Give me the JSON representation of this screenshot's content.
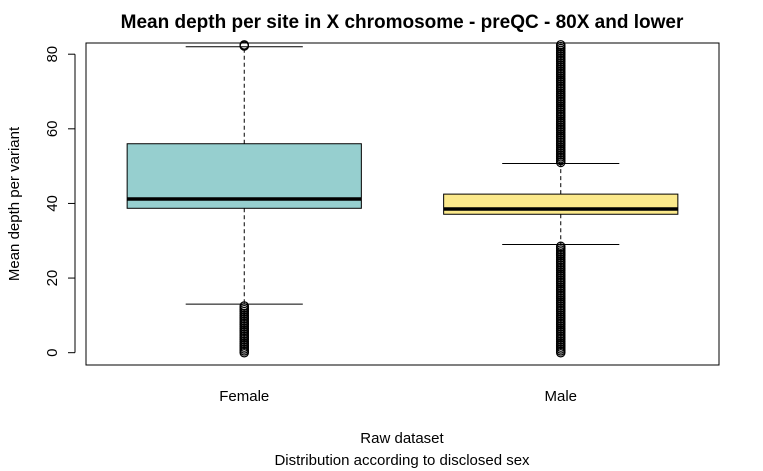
{
  "chart_data": {
    "type": "box",
    "title": "Mean depth per site in X chromosome - preQC - 80X and lower",
    "xlabel": "Raw dataset",
    "xlabel2": "Distribution according to disclosed sex",
    "ylabel": "Mean depth per variant",
    "ylim": [
      -3.3,
      83
    ],
    "yticks": [
      0,
      20,
      40,
      60,
      80
    ],
    "categories": [
      "Female",
      "Male"
    ],
    "boxes": [
      {
        "name": "Female",
        "color": "#96cfcf",
        "whisker_low": 13,
        "q1": 38.7,
        "median": 41.2,
        "q3": 56,
        "whisker_high": 82,
        "outliers_low": [
          0,
          0.5,
          1,
          1.5,
          2,
          2.5,
          3,
          3.5,
          4,
          4.5,
          5,
          5.5,
          6,
          6.5,
          7,
          7.5,
          8,
          8.5,
          9,
          9.5,
          10,
          10.5,
          11,
          11.5,
          12,
          12.5
        ],
        "outliers_high": [
          82.2,
          82.5
        ]
      },
      {
        "name": "Male",
        "color": "#fbe98c",
        "whisker_low": 29,
        "q1": 37.1,
        "median": 38.5,
        "q3": 42.5,
        "whisker_high": 50.7,
        "outliers_low": [
          0,
          0.5,
          1,
          1.5,
          2,
          2.5,
          3,
          3.5,
          4,
          4.5,
          5,
          5.5,
          6,
          6.5,
          7,
          7.5,
          8,
          8.5,
          9,
          9.5,
          10,
          10.5,
          11,
          11.5,
          12,
          12.5,
          13,
          13.5,
          14,
          14.5,
          15,
          15.5,
          16,
          16.5,
          17,
          17.5,
          18,
          18.5,
          19,
          19.5,
          20,
          20.5,
          21,
          21.5,
          22,
          22.5,
          23,
          23.5,
          24,
          24.5,
          25,
          25.5,
          26,
          26.5,
          27,
          27.5,
          28,
          28.5
        ],
        "outliers_high": [
          51,
          51.5,
          52,
          52.5,
          53,
          53.5,
          54,
          54.5,
          55,
          55.5,
          56,
          56.5,
          57,
          57.5,
          58,
          58.5,
          59,
          59.5,
          60,
          60.5,
          61,
          61.5,
          62,
          62.5,
          63,
          63.5,
          64,
          64.5,
          65,
          65.5,
          66,
          66.5,
          67,
          67.5,
          68,
          68.5,
          69,
          69.5,
          70,
          70.5,
          71,
          71.5,
          72,
          72.5,
          73,
          73.5,
          74,
          74.5,
          75,
          75.5,
          76,
          76.5,
          77,
          77.5,
          78,
          78.5,
          79,
          79.5,
          80,
          80.5,
          81,
          81.5,
          82,
          82.5
        ]
      }
    ],
    "grid": false,
    "legend": "none"
  }
}
